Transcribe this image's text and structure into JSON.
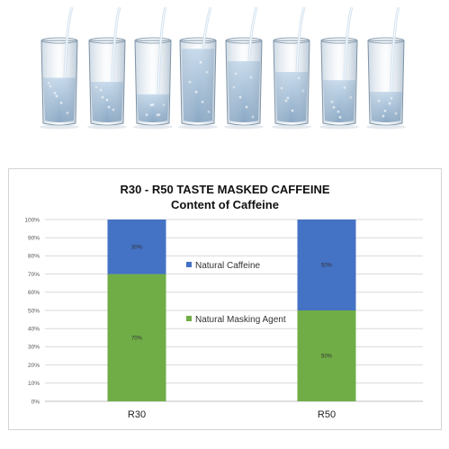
{
  "chart_data": {
    "type": "bar",
    "stacked": true,
    "title": [
      "R30 - R50 TASTE MASKED CAFFEINE",
      "Content of Caffeine"
    ],
    "categories": [
      "R30",
      "R50"
    ],
    "series": [
      {
        "name": "Natural Masking Agent",
        "values": [
          70,
          50
        ],
        "labels": [
          "70%",
          "50%"
        ],
        "color": "#70ad47"
      },
      {
        "name": "Natural Caffeine",
        "values": [
          30,
          50
        ],
        "labels": [
          "30%",
          "50%"
        ],
        "color": "#4472c4"
      }
    ],
    "ylim": [
      0,
      100
    ],
    "yticks": [
      "0%",
      "10%",
      "20%",
      "30%",
      "40%",
      "50%",
      "60%",
      "70%",
      "80%",
      "90%",
      "100%"
    ],
    "grid": true,
    "legend": "center"
  },
  "photo": {
    "glass_count": 8,
    "icon": "water-glasses-photo"
  }
}
